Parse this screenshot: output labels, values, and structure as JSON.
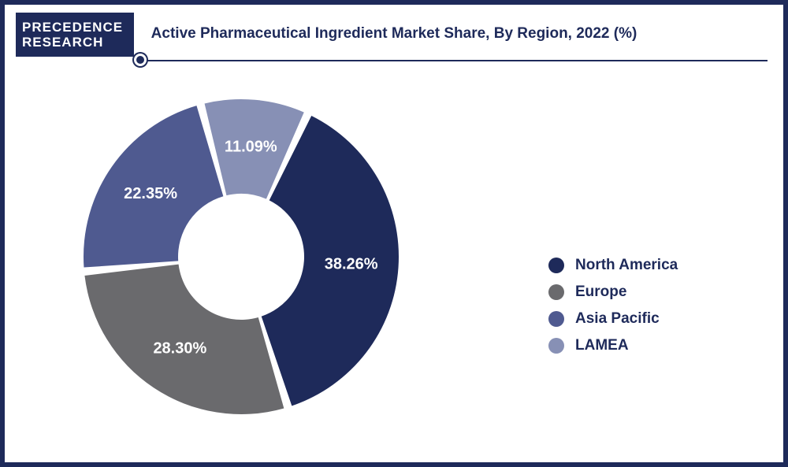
{
  "logo": {
    "line1": "PRECEDENCE",
    "line2": "RESEARCH"
  },
  "title": "Active Pharmaceutical Ingredient Market Share, By Region, 2022 (%)",
  "colors": {
    "frame": "#1e2a5a",
    "background": "#ffffff",
    "title_text": "#1e2a5a",
    "legend_text": "#1e2a5a",
    "label_text": "#ffffff"
  },
  "chart": {
    "type": "donut",
    "inner_radius_pct": 0.4,
    "outer_radius_pct": 1.0,
    "start_angle_deg": 25,
    "gap_deg": 3,
    "label_fontsize": 20,
    "label_fontweight": 700,
    "slices": [
      {
        "name": "North America",
        "value": 38.26,
        "label": "38.26%",
        "color": "#1e2a5a"
      },
      {
        "name": "Europe",
        "value": 28.3,
        "label": "28.30%",
        "color": "#6a6a6d"
      },
      {
        "name": "Asia Pacific",
        "value": 22.35,
        "label": "22.35%",
        "color": "#4f5a90"
      },
      {
        "name": "LAMEA",
        "value": 11.09,
        "label": "11.09%",
        "color": "#8790b5"
      }
    ],
    "legend": {
      "position": "right",
      "fontsize": 19,
      "fontweight": 700
    }
  }
}
